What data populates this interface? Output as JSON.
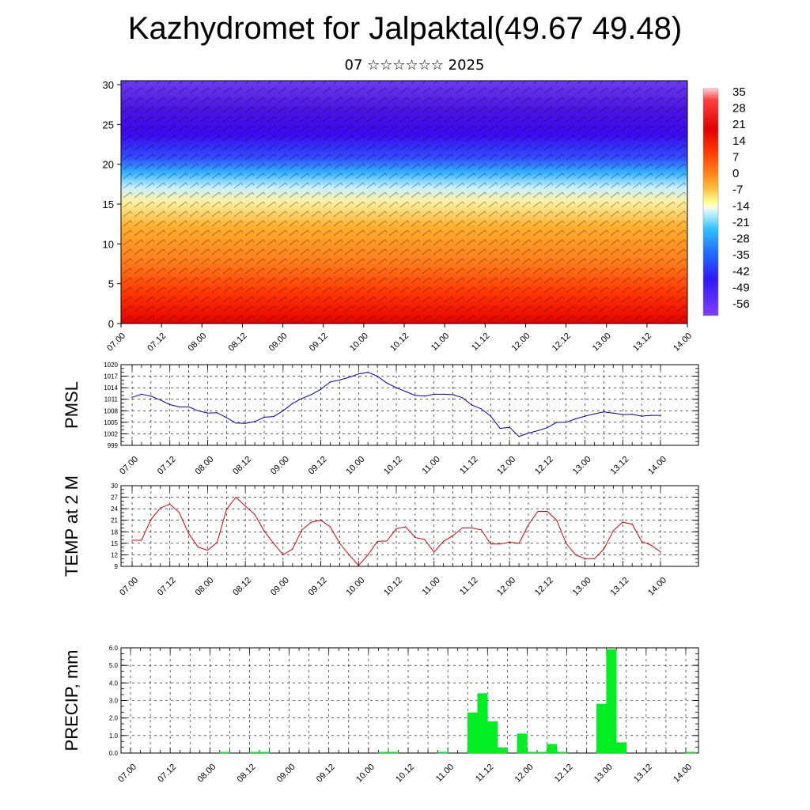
{
  "header": {
    "title": "Kazhydromet for Jalpaktal(49.67 49.48)",
    "subtitle": "07 ☆☆☆☆☆☆ 2025"
  },
  "chart_data": [
    {
      "type": "heatmap",
      "name": "vertical-cross-section",
      "x_tick_labels": [
        "07.00",
        "07.12",
        "08.00",
        "08.12",
        "09.00",
        "09.12",
        "10.00",
        "10.12",
        "11.00",
        "11.12",
        "12.00",
        "12.12",
        "13.00",
        "13.12",
        "14.00"
      ],
      "y_tick_labels": [
        "0",
        "5",
        "10",
        "15",
        "20",
        "25",
        "30"
      ],
      "ylim": [
        0,
        30.5
      ],
      "colorbar_labels": [
        "35",
        "28",
        "21",
        "14",
        "7",
        "0",
        "-7",
        "-14",
        "-21",
        "-28",
        "-35",
        "-42",
        "-49",
        "-56"
      ],
      "overlay": "wind barbs"
    },
    {
      "type": "line",
      "ylabel": "PMSL",
      "y_tick_labels": [
        "1020",
        "1017",
        "1014",
        "1011",
        "1008",
        "1005",
        "1002",
        "999"
      ],
      "ylim": [
        999,
        1020
      ],
      "x_tick_labels": [
        "07.00",
        "07.12",
        "08.00",
        "08.12",
        "09.00",
        "09.12",
        "10.00",
        "10.12",
        "11.00",
        "11.12",
        "12.00",
        "12.12",
        "13.00",
        "13.12",
        "14.00"
      ],
      "color": "#0000cc",
      "x_hours": [
        0,
        3,
        6,
        9,
        12,
        15,
        18,
        21,
        24,
        27,
        30,
        33,
        36,
        39,
        42,
        45,
        48,
        51,
        54,
        57,
        60,
        63,
        66,
        69,
        72,
        75,
        78,
        81,
        84,
        87,
        90,
        93,
        96,
        99,
        102,
        105,
        108,
        111,
        114,
        117,
        120,
        123,
        126,
        129,
        132,
        135,
        138,
        141,
        144,
        147,
        150,
        153,
        156,
        159,
        162,
        165,
        168
      ],
      "values": [
        1011.5,
        1012.3,
        1011.8,
        1010.8,
        1009.6,
        1009.0,
        1009.0,
        1008.0,
        1007.4,
        1007.5,
        1006.2,
        1004.8,
        1004.7,
        1005.2,
        1006.3,
        1006.5,
        1008.0,
        1009.9,
        1011.2,
        1012.2,
        1013.6,
        1015.5,
        1016.0,
        1016.7,
        1017.6,
        1018.0,
        1017.0,
        1015.2,
        1014.0,
        1013.0,
        1012.0,
        1011.8,
        1012.3,
        1012.3,
        1012.2,
        1011.4,
        1009.5,
        1008.5,
        1006.6,
        1003.4,
        1003.7,
        1001.3,
        1002.2,
        1002.8,
        1003.6,
        1005.0,
        1005.0,
        1005.9,
        1006.6,
        1007.2,
        1007.7,
        1007.4,
        1007.0,
        1007.1,
        1006.6,
        1006.8,
        1006.8
      ]
    },
    {
      "type": "line",
      "ylabel": "TEMP at 2 M",
      "y_tick_labels": [
        "30",
        "27",
        "24",
        "21",
        "18",
        "15",
        "12",
        "9"
      ],
      "ylim": [
        9,
        30
      ],
      "x_tick_labels": [
        "07.00",
        "07.12",
        "08.00",
        "08.12",
        "09.00",
        "09.12",
        "10.00",
        "10.12",
        "11.00",
        "11.12",
        "12.00",
        "12.12",
        "13.00",
        "13.12",
        "14.00"
      ],
      "color": "#dd0000",
      "x_hours": [
        0,
        3,
        6,
        9,
        12,
        15,
        18,
        21,
        24,
        27,
        30,
        33,
        36,
        39,
        42,
        45,
        48,
        51,
        54,
        57,
        60,
        63,
        66,
        69,
        72,
        75,
        78,
        81,
        84,
        87,
        90,
        93,
        96,
        99,
        102,
        105,
        108,
        111,
        114,
        117,
        120,
        123,
        126,
        129,
        132,
        135,
        138,
        141,
        144,
        147,
        150,
        153,
        156,
        159,
        162,
        165,
        168
      ],
      "values": [
        15.8,
        15.8,
        21.2,
        24.2,
        25.2,
        23.0,
        17.5,
        14.0,
        13.2,
        15.2,
        23.8,
        27.0,
        24.7,
        22.5,
        18.2,
        15.0,
        12.0,
        13.5,
        18.5,
        20.5,
        21.0,
        19.3,
        15.0,
        12.0,
        9.2,
        12.0,
        15.5,
        15.6,
        18.8,
        19.3,
        16.5,
        16.0,
        12.7,
        15.5,
        17.0,
        19.0,
        19.0,
        18.5,
        14.8,
        14.8,
        15.3,
        15.0,
        19.8,
        23.3,
        23.3,
        21.0,
        15.0,
        12.0,
        11.0,
        11.0,
        13.5,
        18.3,
        20.5,
        20.0,
        15.5,
        14.5,
        12.8
      ]
    },
    {
      "type": "bar",
      "ylabel": "PRECIP, mm",
      "y_tick_labels": [
        "6.0",
        "5.0",
        "4.0",
        "3.0",
        "2.0",
        "1.0",
        "0.0"
      ],
      "ylim": [
        0,
        6.0
      ],
      "x_tick_labels": [
        "07.00",
        "07.12",
        "08.00",
        "08.12",
        "09.00",
        "09.12",
        "10.00",
        "10.12",
        "11.00",
        "11.12",
        "12.00",
        "12.12",
        "13.00",
        "13.12",
        "14.00"
      ],
      "color": "#00ee22",
      "x_hours": [
        27,
        36,
        39,
        75,
        78,
        93,
        102,
        105,
        108,
        111,
        114,
        117,
        120,
        123,
        126,
        129,
        141,
        144,
        147,
        168
      ],
      "values": [
        0.05,
        0.05,
        0.05,
        0.05,
        0.05,
        0.05,
        2.3,
        3.4,
        1.8,
        0.3,
        0.0,
        1.1,
        0.05,
        0.05,
        0.5,
        0.05,
        2.8,
        5.9,
        0.6,
        0.05
      ]
    }
  ]
}
